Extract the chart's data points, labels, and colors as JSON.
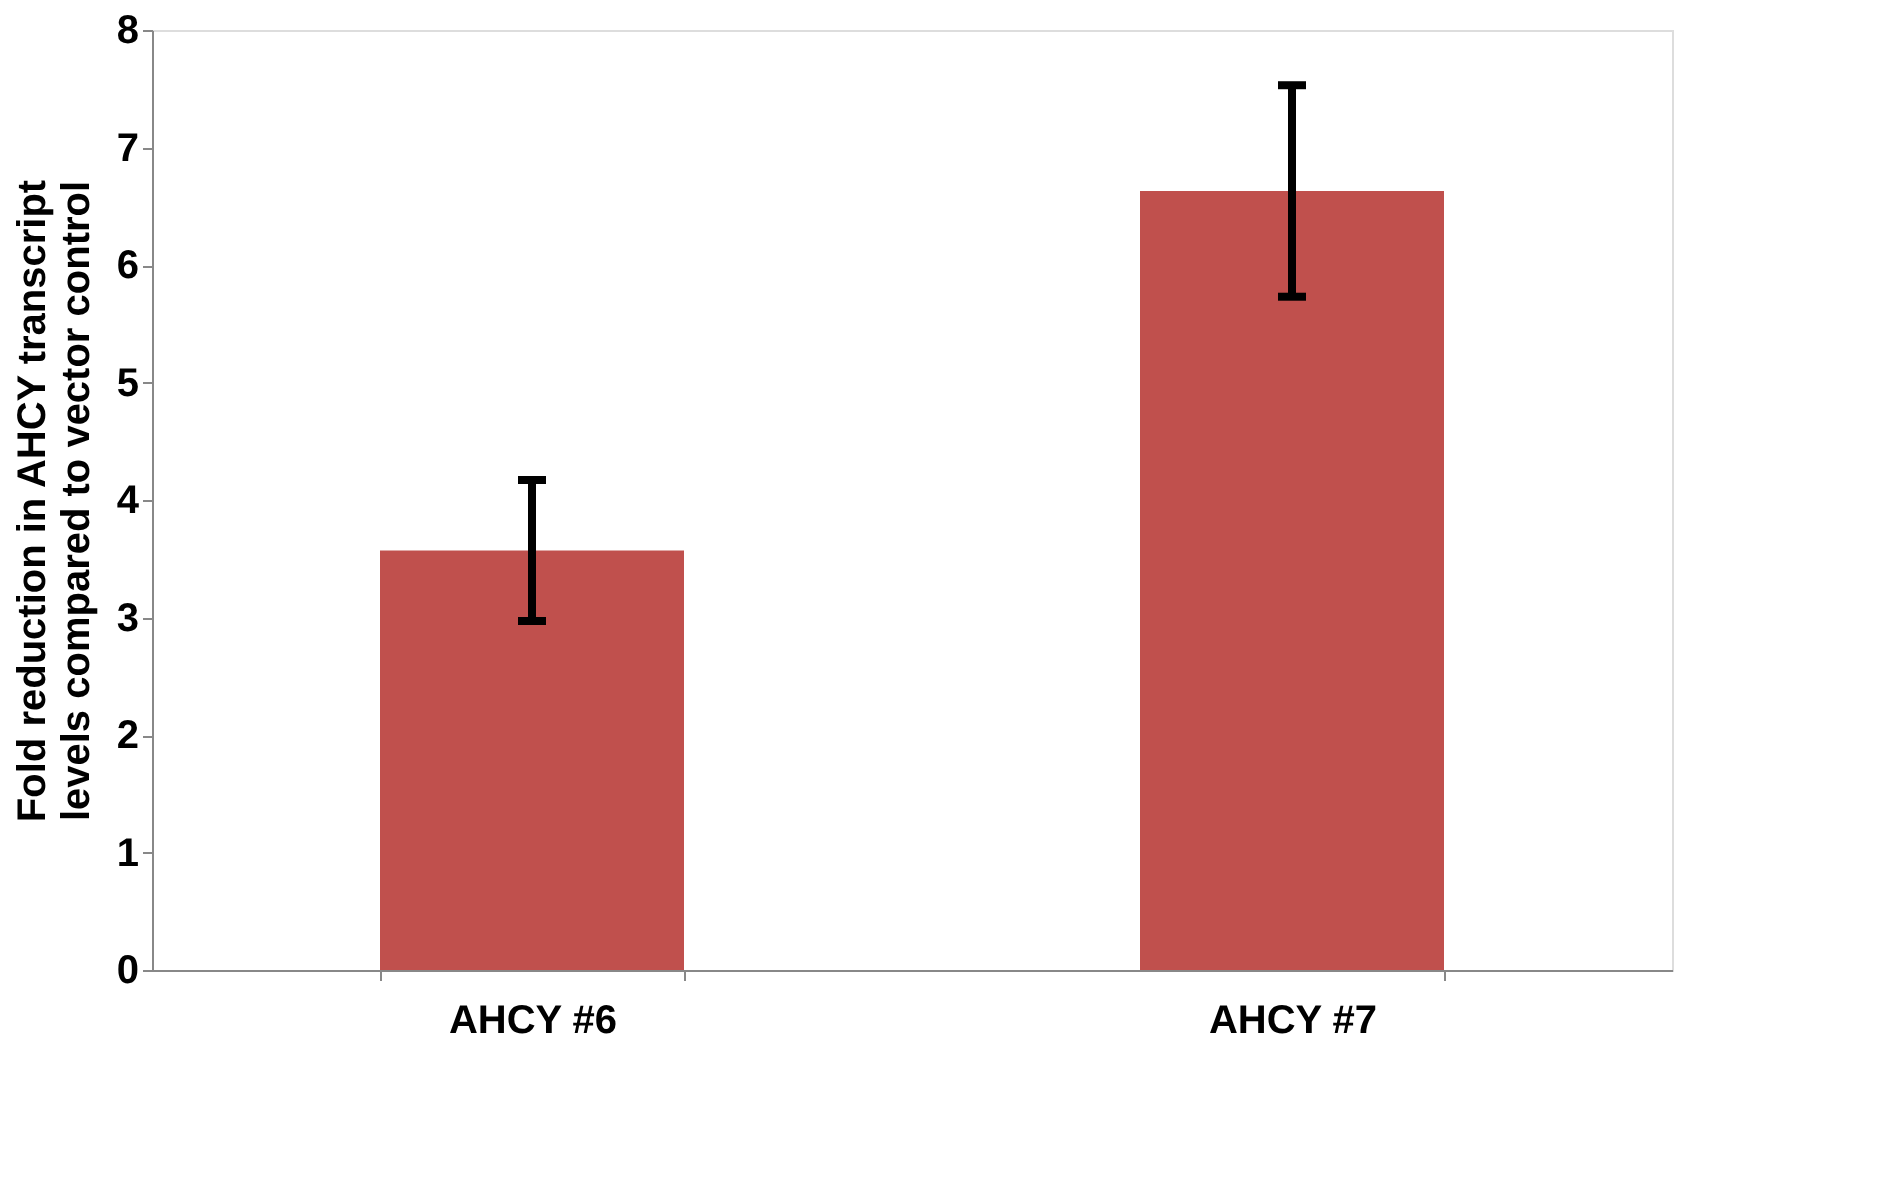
{
  "chart_data": {
    "type": "bar",
    "ylabel": "Fold reduction in AHCY transcript levels compared to vector control",
    "categories": [
      "AHCY #6",
      "AHCY #7"
    ],
    "values": [
      3.57,
      6.63
    ],
    "errors": [
      0.6,
      0.9
    ],
    "color": "#c0504d",
    "ylim": [
      0,
      8
    ],
    "yticks": [
      0,
      1,
      2,
      3,
      4,
      5,
      6,
      7,
      8
    ],
    "grid": false
  }
}
